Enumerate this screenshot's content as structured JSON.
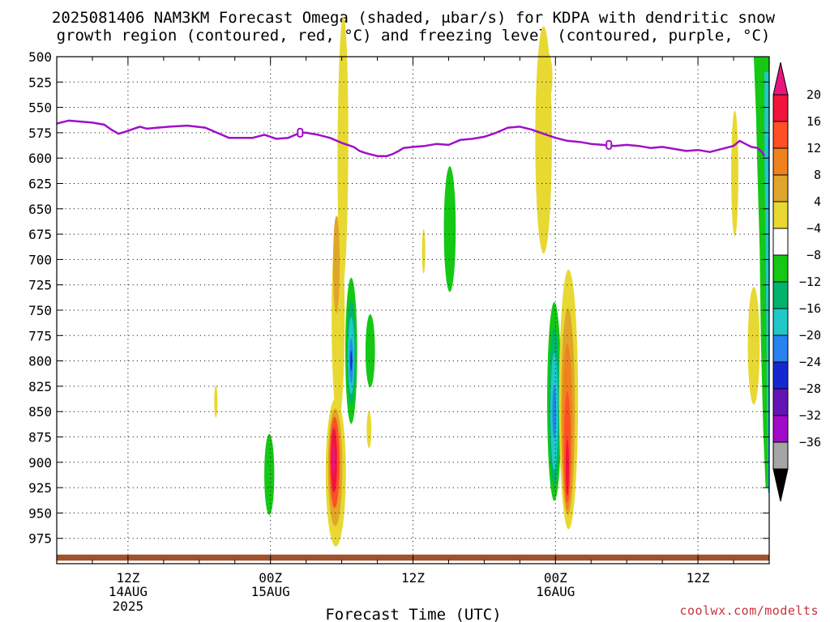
{
  "chart_data": {
    "type": "heatmap",
    "title_lines": [
      "2025081406 NAM3KM Forecast Omega (shaded, μbar/s) for KDPA with dendritic snow",
      "growth region (contoured, red, °C) and freezing level (contoured, purple, °C)"
    ],
    "xlabel": "Forecast Time (UTC)",
    "credit": "coolwx.com/modelts",
    "x_unit": "hours since 2025-08-14 00Z",
    "xlim": [
      6,
      66
    ],
    "y_unit": "hPa",
    "ylim": [
      500,
      1000
    ],
    "pressure_levels": [
      500,
      525,
      550,
      575,
      600,
      625,
      650,
      675,
      700,
      725,
      750,
      775,
      800,
      825,
      850,
      875,
      900,
      925,
      950,
      975
    ],
    "x_ticks": [
      {
        "x": 12,
        "label": "12Z",
        "date": "14AUG",
        "year": "2025"
      },
      {
        "x": 24,
        "label": "00Z",
        "date": "15AUG",
        "year": ""
      },
      {
        "x": 36,
        "label": "12Z",
        "date": "",
        "year": ""
      },
      {
        "x": 48,
        "label": "00Z",
        "date": "16AUG",
        "year": ""
      },
      {
        "x": 60,
        "label": "12Z",
        "date": "",
        "year": ""
      }
    ],
    "grid": true,
    "colorbar": {
      "labels": [
        "20",
        "16",
        "12",
        "8",
        "4",
        "−4",
        "−8",
        "−12",
        "−16",
        "−20",
        "−24",
        "−28",
        "−32",
        "−36"
      ],
      "top_color": "#e8157e",
      "bottom_color": "#000000",
      "segments": [
        "#f0143c",
        "#ff4f24",
        "#f0821e",
        "#e0a52a",
        "#e8d832",
        "#ffffff",
        "#14c814",
        "#00b46e",
        "#20c8c8",
        "#2882f0",
        "#1428d2",
        "#6414b4",
        "#a00ac8",
        "#a5a5a5"
      ]
    },
    "freezing_level": {
      "color": "#a00fc8",
      "points": [
        [
          6,
          566
        ],
        [
          7,
          563
        ],
        [
          8,
          564
        ],
        [
          9,
          565
        ],
        [
          10,
          567
        ],
        [
          10.6,
          572
        ],
        [
          11.2,
          576
        ],
        [
          11.8,
          574
        ],
        [
          12.5,
          571
        ],
        [
          13,
          569
        ],
        [
          13.6,
          571
        ],
        [
          14.5,
          570
        ],
        [
          15.5,
          569
        ],
        [
          17,
          568
        ],
        [
          18.5,
          570
        ],
        [
          19.5,
          575
        ],
        [
          20.5,
          580
        ],
        [
          21.5,
          580
        ],
        [
          22.5,
          580
        ],
        [
          23.5,
          577
        ],
        [
          24.5,
          581
        ],
        [
          25.5,
          580
        ],
        [
          26.5,
          575
        ],
        [
          27,
          575
        ],
        [
          28,
          577
        ],
        [
          29,
          580
        ],
        [
          30,
          585
        ],
        [
          31,
          589
        ],
        [
          31.5,
          593
        ],
        [
          32,
          595
        ],
        [
          33,
          598
        ],
        [
          33.8,
          598
        ],
        [
          34.3,
          596
        ],
        [
          34.8,
          593
        ],
        [
          35.2,
          590
        ],
        [
          36,
          589
        ],
        [
          37,
          588
        ],
        [
          38,
          586
        ],
        [
          39,
          587
        ],
        [
          40,
          582
        ],
        [
          41,
          581
        ],
        [
          42,
          579
        ],
        [
          43,
          575
        ],
        [
          44,
          570
        ],
        [
          45,
          569
        ],
        [
          46,
          572
        ],
        [
          47,
          576
        ],
        [
          48,
          580
        ],
        [
          49,
          583
        ],
        [
          50,
          584
        ],
        [
          51,
          586
        ],
        [
          52,
          587
        ],
        [
          53,
          588
        ],
        [
          54,
          587
        ],
        [
          55,
          588
        ],
        [
          56,
          590
        ],
        [
          57,
          589
        ],
        [
          58,
          591
        ],
        [
          59,
          593
        ],
        [
          60,
          592
        ],
        [
          61,
          594
        ],
        [
          62,
          591
        ],
        [
          63,
          588
        ],
        [
          63.5,
          583
        ],
        [
          64,
          586
        ],
        [
          64.5,
          589
        ],
        [
          65,
          590
        ],
        [
          65.4,
          594
        ],
        [
          65.6,
          598
        ]
      ],
      "markers": [
        [
          26.5,
          575
        ],
        [
          52.5,
          587
        ]
      ]
    },
    "omega_regions": [
      {
        "color": "#e8d832",
        "x": 30.1,
        "y": 593,
        "rx": 0.45,
        "ry": 133,
        "rot": 0.2
      },
      {
        "color": "#e8d832",
        "x": 29.7,
        "y": 758,
        "rx": 0.55,
        "ry": 101,
        "rot": 0
      },
      {
        "color": "#e0a52a",
        "x": 29.55,
        "y": 705,
        "rx": 0.28,
        "ry": 48,
        "rot": 0
      },
      {
        "color": "#e8d832",
        "x": 29.5,
        "y": 910,
        "rx": 0.85,
        "ry": 73,
        "rot": 0
      },
      {
        "color": "#e0a52a",
        "x": 29.45,
        "y": 905,
        "rx": 0.6,
        "ry": 58,
        "rot": 0
      },
      {
        "color": "#ff4f24",
        "x": 29.4,
        "y": 900,
        "rx": 0.42,
        "ry": 45,
        "rot": 0
      },
      {
        "color": "#f0143c",
        "x": 29.35,
        "y": 898,
        "rx": 0.26,
        "ry": 32,
        "rot": 0
      },
      {
        "color": "#e8157e",
        "x": 29.3,
        "y": 897,
        "rx": 0.12,
        "ry": 16,
        "rot": 0
      },
      {
        "color": "#14c814",
        "x": 30.8,
        "y": 790,
        "rx": 0.5,
        "ry": 72,
        "rot": 0
      },
      {
        "color": "#00b46e",
        "x": 30.8,
        "y": 792,
        "rx": 0.38,
        "ry": 52,
        "rot": 0
      },
      {
        "color": "#20c8c8",
        "x": 30.8,
        "y": 795,
        "rx": 0.28,
        "ry": 38,
        "rot": 0
      },
      {
        "color": "#2882f0",
        "x": 30.8,
        "y": 800,
        "rx": 0.16,
        "ry": 22,
        "rot": 0
      },
      {
        "color": "#1428d2",
        "x": 30.8,
        "y": 800,
        "rx": 0.07,
        "ry": 10,
        "rot": 0
      },
      {
        "color": "#14c814",
        "x": 32.4,
        "y": 790,
        "rx": 0.4,
        "ry": 36,
        "rot": 0
      },
      {
        "color": "#e8d832",
        "x": 32.3,
        "y": 868,
        "rx": 0.2,
        "ry": 18,
        "rot": 0
      },
      {
        "color": "#14c814",
        "x": 23.9,
        "y": 912,
        "rx": 0.42,
        "ry": 40,
        "rot": 0
      },
      {
        "color": "#e8d832",
        "x": 19.4,
        "y": 840,
        "rx": 0.14,
        "ry": 16,
        "rot": 0
      },
      {
        "color": "#e8d832",
        "x": 36.9,
        "y": 692,
        "rx": 0.14,
        "ry": 22,
        "rot": 0
      },
      {
        "color": "#14c814",
        "x": 39.1,
        "y": 670,
        "rx": 0.5,
        "ry": 62,
        "rot": 0
      },
      {
        "color": "#e8d832",
        "x": 47.0,
        "y": 582,
        "rx": 0.7,
        "ry": 112,
        "rot": 0
      },
      {
        "color": "#e8d832",
        "x": 47.3,
        "y": 520,
        "rx": 0.45,
        "ry": 25,
        "rot": 0
      },
      {
        "color": "#14c814",
        "x": 47.9,
        "y": 840,
        "rx": 0.6,
        "ry": 98,
        "rot": 0
      },
      {
        "color": "#00b46e",
        "x": 47.9,
        "y": 845,
        "rx": 0.45,
        "ry": 78,
        "rot": 0
      },
      {
        "color": "#20c8c8",
        "x": 47.9,
        "y": 850,
        "rx": 0.32,
        "ry": 58,
        "rot": 0
      },
      {
        "color": "#2882f0",
        "x": 47.9,
        "y": 850,
        "rx": 0.16,
        "ry": 26,
        "rot": 0
      },
      {
        "color": "#e8d832",
        "x": 49.1,
        "y": 838,
        "rx": 0.8,
        "ry": 128,
        "rot": 0
      },
      {
        "color": "#e0a52a",
        "x": 49.05,
        "y": 850,
        "rx": 0.58,
        "ry": 102,
        "rot": 0
      },
      {
        "color": "#f0821e",
        "x": 49.0,
        "y": 865,
        "rx": 0.42,
        "ry": 82,
        "rot": 0
      },
      {
        "color": "#ff4f24",
        "x": 49.0,
        "y": 885,
        "rx": 0.28,
        "ry": 55,
        "rot": 0
      },
      {
        "color": "#f0143c",
        "x": 49.0,
        "y": 905,
        "rx": 0.14,
        "ry": 28,
        "rot": 0
      },
      {
        "color": "#e8d832",
        "x": 63.1,
        "y": 615,
        "rx": 0.3,
        "ry": 62,
        "rot": 0
      },
      {
        "color": "#e8d832",
        "x": 64.7,
        "y": 785,
        "rx": 0.5,
        "ry": 58,
        "rot": 0
      }
    ],
    "right_edge_band": {
      "green": [
        [
          64.7,
          500
        ],
        [
          66,
          500
        ],
        [
          66,
          925
        ],
        [
          65.7,
          925
        ],
        [
          65.5,
          870
        ],
        [
          65.3,
          780
        ],
        [
          65.2,
          690
        ],
        [
          65,
          610
        ],
        [
          64.9,
          560
        ]
      ],
      "teal": [
        [
          65.6,
          515
        ],
        [
          66,
          515
        ],
        [
          66,
          930
        ],
        [
          65.9,
          930
        ],
        [
          65.8,
          830
        ],
        [
          65.7,
          690
        ],
        [
          65.6,
          600
        ]
      ],
      "blue": [
        [
          65.9,
          580
        ],
        [
          66,
          580
        ],
        [
          66,
          700
        ],
        [
          65.95,
          650
        ]
      ]
    },
    "ground_band": {
      "color": "#a0522d",
      "top": 991,
      "bottom": 997
    }
  }
}
